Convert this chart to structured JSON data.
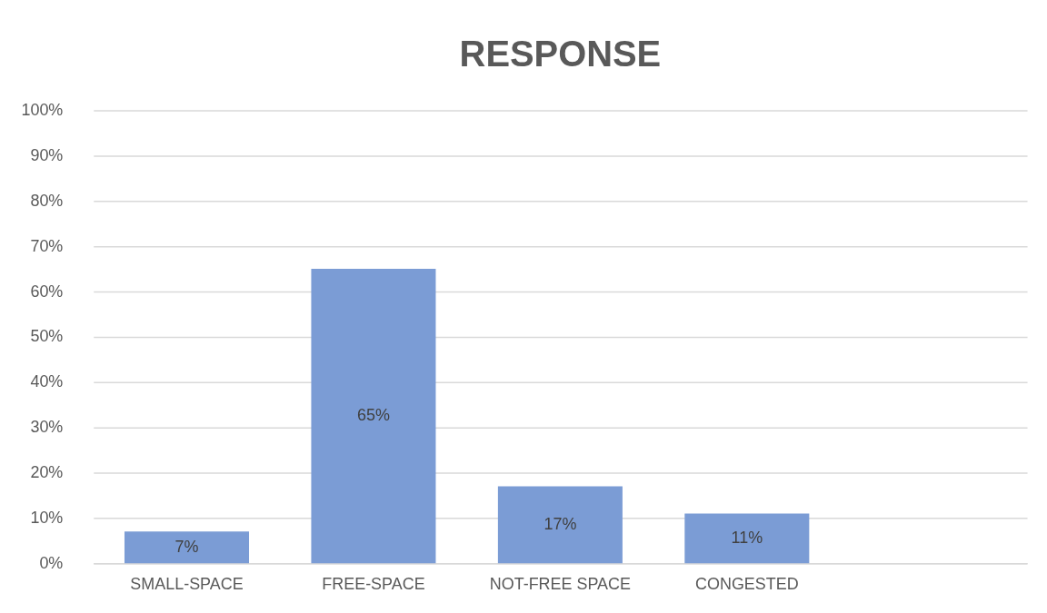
{
  "chart_data": {
    "type": "bar",
    "title": "RESPONSE",
    "categories": [
      "SMALL-SPACE",
      "FREE-SPACE",
      "NOT-FREE SPACE",
      "CONGESTED",
      null
    ],
    "values": [
      7,
      65,
      17,
      11,
      null
    ],
    "value_labels": [
      "7%",
      "65%",
      "17%",
      "11%",
      null
    ],
    "color": "#7b9cd5",
    "ylim": [
      0,
      100
    ],
    "yticks": [
      {
        "value": 0,
        "label": "0%"
      },
      {
        "value": 10,
        "label": "10%"
      },
      {
        "value": 20,
        "label": "20%"
      },
      {
        "value": 30,
        "label": "30%"
      },
      {
        "value": 40,
        "label": "40%"
      },
      {
        "value": 50,
        "label": "50%"
      },
      {
        "value": 60,
        "label": "60%"
      },
      {
        "value": 70,
        "label": "70%"
      },
      {
        "value": 80,
        "label": "80%"
      },
      {
        "value": 90,
        "label": "90%"
      },
      {
        "value": 100,
        "label": "100%"
      }
    ],
    "grid": "y"
  }
}
